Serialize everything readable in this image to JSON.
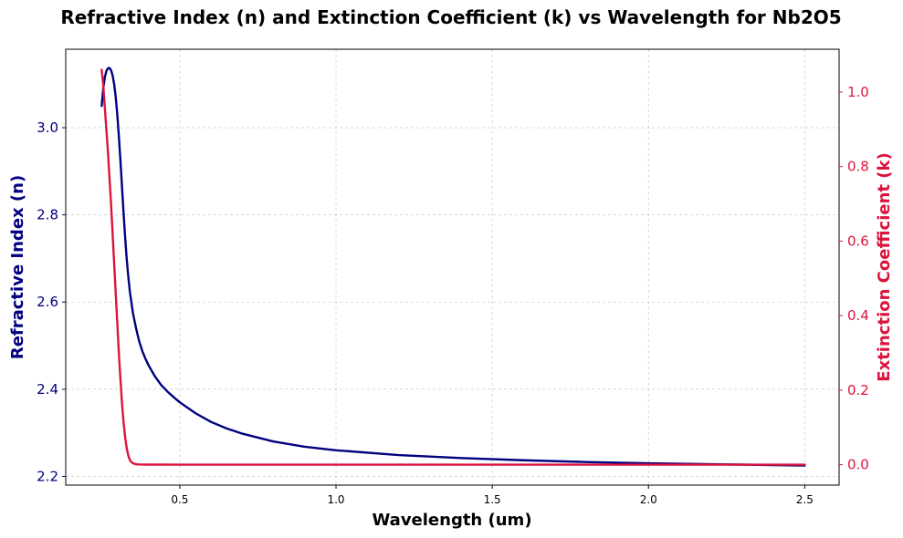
{
  "chart_data": {
    "type": "line",
    "title": "Refractive Index (n) and Extinction Coefficient (k) vs Wavelength for Nb2O5",
    "xlabel": "Wavelength (um)",
    "ylabel_left": "Refractive Index (n)",
    "ylabel_right": "Extinction Coefficient (k)",
    "xlim": [
      0.135,
      2.61
    ],
    "ylim_left": [
      2.18,
      3.18
    ],
    "ylim_right": [
      -0.055,
      1.115
    ],
    "x_ticks": [
      0.5,
      1.0,
      1.5,
      2.0,
      2.5
    ],
    "x_tick_labels": [
      "0.5",
      "1.0",
      "1.5",
      "2.0",
      "2.5"
    ],
    "y_left_ticks": [
      2.2,
      2.4,
      2.6,
      2.8,
      3.0
    ],
    "y_left_tick_labels": [
      "2.2",
      "2.4",
      "2.6",
      "2.8",
      "3.0"
    ],
    "y_right_ticks": [
      0.0,
      0.2,
      0.4,
      0.6,
      0.8,
      1.0
    ],
    "y_right_tick_labels": [
      "0.0",
      "0.2",
      "0.4",
      "0.6",
      "0.8",
      "1.0"
    ],
    "grid": true,
    "series": [
      {
        "axis": "left",
        "color": "#000080",
        "x": [
          0.25,
          0.255,
          0.26,
          0.265,
          0.27,
          0.275,
          0.28,
          0.285,
          0.29,
          0.295,
          0.3,
          0.305,
          0.31,
          0.315,
          0.32,
          0.325,
          0.33,
          0.335,
          0.34,
          0.345,
          0.35,
          0.36,
          0.37,
          0.38,
          0.39,
          0.4,
          0.42,
          0.44,
          0.46,
          0.48,
          0.5,
          0.55,
          0.6,
          0.65,
          0.7,
          0.8,
          0.9,
          1.0,
          1.2,
          1.4,
          1.6,
          1.8,
          2.0,
          2.2,
          2.4,
          2.5
        ],
        "values": [
          3.05,
          3.09,
          3.115,
          3.13,
          3.136,
          3.137,
          3.132,
          3.12,
          3.1,
          3.07,
          3.03,
          2.98,
          2.925,
          2.865,
          2.805,
          2.75,
          2.7,
          2.66,
          2.625,
          2.6,
          2.575,
          2.54,
          2.51,
          2.488,
          2.47,
          2.455,
          2.43,
          2.41,
          2.395,
          2.382,
          2.37,
          2.345,
          2.325,
          2.31,
          2.298,
          2.28,
          2.268,
          2.26,
          2.249,
          2.242,
          2.237,
          2.233,
          2.23,
          2.228,
          2.226,
          2.225
        ]
      },
      {
        "axis": "right",
        "color": "#dc143c",
        "x": [
          0.25,
          0.255,
          0.26,
          0.265,
          0.27,
          0.275,
          0.28,
          0.285,
          0.29,
          0.295,
          0.3,
          0.305,
          0.31,
          0.315,
          0.32,
          0.325,
          0.33,
          0.335,
          0.34,
          0.345,
          0.35,
          0.355,
          0.36,
          0.37,
          0.38,
          0.4,
          0.5,
          1.0,
          1.5,
          2.0,
          2.5
        ],
        "values": [
          1.06,
          1.02,
          0.96,
          0.9,
          0.84,
          0.77,
          0.7,
          0.62,
          0.54,
          0.46,
          0.38,
          0.3,
          0.23,
          0.165,
          0.115,
          0.075,
          0.045,
          0.025,
          0.013,
          0.007,
          0.004,
          0.002,
          0.001,
          0.0005,
          0.0002,
          0.0001,
          0.0,
          0.0,
          0.0,
          0.0,
          0.0
        ]
      }
    ]
  }
}
